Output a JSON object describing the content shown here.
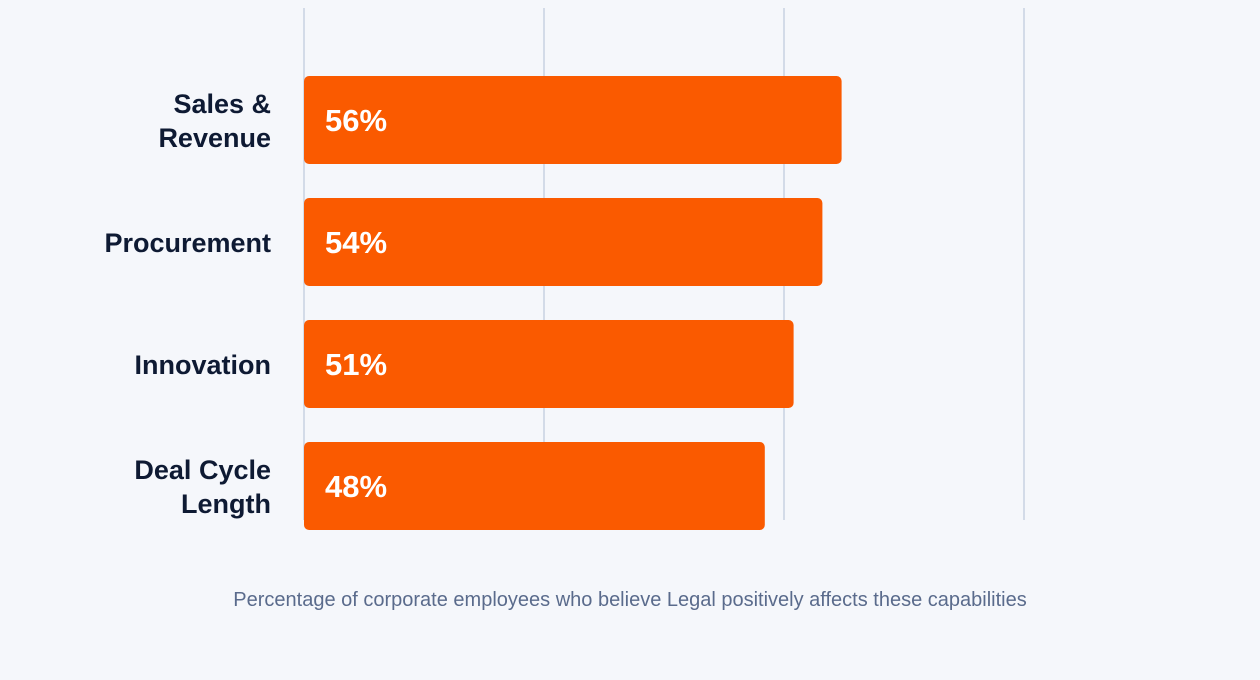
{
  "caption": "Percentage of corporate employees who believe Legal positively affects these capabilities",
  "colors": {
    "background": "#f5f7fb",
    "bar": "#fa5a00",
    "gridline": "#d3dbe8",
    "category_text": "#0e1a33",
    "value_text": "#ffffff",
    "caption_text": "#5a6b8c"
  },
  "chart_data": {
    "type": "bar",
    "orientation": "horizontal",
    "categories": [
      [
        "Sales &",
        "Revenue"
      ],
      [
        "Procurement"
      ],
      [
        "Innovation"
      ],
      [
        "Deal Cycle",
        "Length"
      ]
    ],
    "values": [
      56,
      54,
      51,
      48
    ],
    "value_labels": [
      "56%",
      "54%",
      "51%",
      "48%"
    ],
    "xlim": [
      0,
      75
    ],
    "gridlines": [
      0,
      25,
      50,
      75
    ],
    "grid": true,
    "legend": false
  }
}
